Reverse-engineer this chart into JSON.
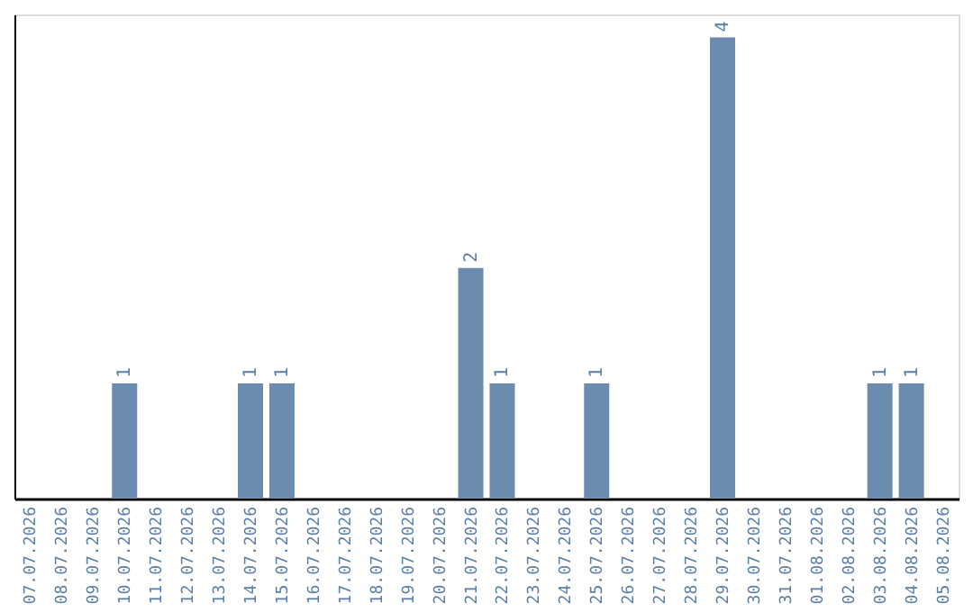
{
  "chart_data": {
    "type": "bar",
    "categories": [
      "07.07.2026",
      "08.07.2026",
      "09.07.2026",
      "10.07.2026",
      "11.07.2026",
      "12.07.2026",
      "13.07.2026",
      "14.07.2026",
      "15.07.2026",
      "16.07.2026",
      "17.07.2026",
      "18.07.2026",
      "19.07.2026",
      "20.07.2026",
      "21.07.2026",
      "22.07.2026",
      "23.07.2026",
      "24.07.2026",
      "25.07.2026",
      "26.07.2026",
      "27.07.2026",
      "28.07.2026",
      "29.07.2026",
      "30.07.2026",
      "31.07.2026",
      "01.08.2026",
      "02.08.2026",
      "03.08.2026",
      "04.08.2026",
      "05.08.2026"
    ],
    "values": [
      0,
      0,
      0,
      1,
      0,
      0,
      0,
      1,
      1,
      0,
      0,
      0,
      0,
      0,
      2,
      1,
      0,
      0,
      1,
      0,
      0,
      0,
      4,
      0,
      0,
      0,
      0,
      1,
      1,
      0
    ],
    "value_labels": [
      null,
      null,
      null,
      "1",
      null,
      null,
      null,
      "1",
      "1",
      null,
      null,
      null,
      null,
      null,
      "2",
      "1",
      null,
      null,
      "1",
      null,
      null,
      null,
      "4",
      null,
      null,
      null,
      null,
      "1",
      "1",
      null
    ],
    "color": "#6b8cae",
    "ylim": [
      0,
      4.2
    ],
    "tick_labels": "x",
    "grid": false
  }
}
